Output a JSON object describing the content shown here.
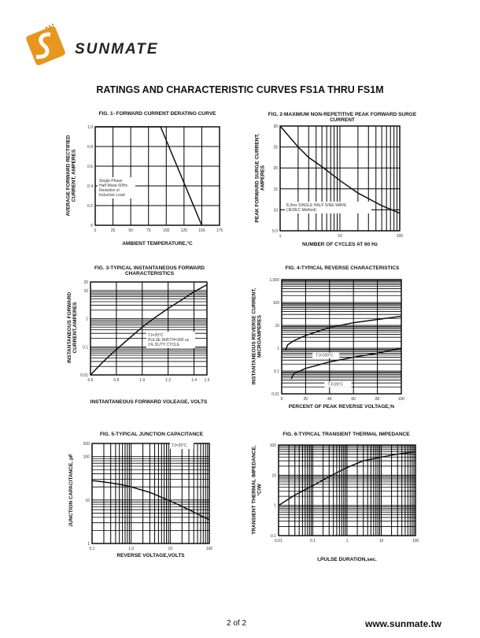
{
  "header": {
    "logo_text": "SUNMATE",
    "title": "RATINGS AND CHARACTERISTIC CURVES FS1A THRU FS1M"
  },
  "footer": {
    "page": "2 of 2",
    "url": "www.sunmate.tw"
  },
  "colors": {
    "logo_orange": "#e8961e",
    "logo_text": "#222222",
    "grid": "#000000"
  },
  "chart_data": [
    {
      "type": "line",
      "title": "FIG. 1- FORWARD CURRENT DERATING CURVE",
      "xlabel": "AMBIENT TEMPERATURE,°C",
      "ylabel": "AVERAGE FORWARD RECTIFIED CURRENT, AMPERES",
      "xlim": [
        0,
        175
      ],
      "ylim": [
        0,
        1.0
      ],
      "xscale": "linear",
      "yscale": "linear",
      "grid": true,
      "xticks": [
        "0",
        "25",
        "50",
        "75",
        "100",
        "125",
        "150",
        "175"
      ],
      "yticks": [
        "0",
        "0.2",
        "0.4",
        "0.6",
        "0.8",
        "1.0"
      ],
      "annotation": [
        "Single Phase",
        "Half Wave 60Hz",
        "Resistive or",
        "Inductive Load"
      ],
      "series": [
        {
          "x": [
            0,
            92,
            150
          ],
          "y": [
            1.0,
            1.0,
            0
          ]
        }
      ]
    },
    {
      "type": "line",
      "title": "FIG. 2-MAXIMUM NON-REPETITIVE PEAK FORWARD SURGE CURRENT",
      "xlabel": "NUMBER OF CYCLES AT 60 Hz",
      "ylabel": "PEAK FORWARD SURGE CURRENT, AMPERES",
      "xlim": [
        1,
        100
      ],
      "ylim": [
        5,
        30
      ],
      "xscale": "log",
      "yscale": "linear",
      "grid": true,
      "xticks": [
        "1",
        "10",
        "100"
      ],
      "yticks": [
        "5.0",
        "10",
        "15",
        "20",
        "25",
        "30"
      ],
      "annotation": [
        "8.3ms SINGLE HALF SINE-WAVE",
        "(JEDEC Method)"
      ],
      "series": [
        {
          "x": [
            1,
            2,
            3,
            5,
            10,
            20,
            50,
            100
          ],
          "y": [
            30,
            25,
            22.5,
            20.3,
            17,
            14,
            11,
            9.2
          ]
        }
      ]
    },
    {
      "type": "line",
      "title": "FIG. 3-TYPICAL INSTANTANEOUS FORWARD CHARACTERISTICS",
      "xlabel": "INSTANTANEOUS FORWARD VOLEAGE, VOLTS",
      "ylabel": "INSTANTANEOUS FORWARD CURRENT,AMPERES",
      "xlim": [
        0.6,
        1.5
      ],
      "ylim": [
        0.01,
        20
      ],
      "xscale": "linear",
      "yscale": "log",
      "grid": true,
      "xticks": [
        "0.6",
        "0.8",
        "1.0",
        "1.2",
        "1.4",
        "1.5"
      ],
      "yticks": [
        "0.01",
        "0.1",
        "1",
        "10",
        "20"
      ],
      "annotation": [
        "TJ=25°C",
        "PULSE WIDTH=300 us",
        "1% DUTY CYCLE"
      ],
      "series": [
        {
          "x": [
            0.6,
            0.7,
            0.8,
            0.9,
            1.0,
            1.1,
            1.2,
            1.3,
            1.4,
            1.5
          ],
          "y": [
            0.01,
            0.03,
            0.08,
            0.2,
            0.5,
            1.1,
            2.3,
            4.5,
            9,
            16
          ]
        }
      ]
    },
    {
      "type": "line",
      "title": "FIG. 4-TYPICAL REVERSE CHARACTERISTICS",
      "xlabel": "PERCENT OF PEAK REVERSE VOLTAGE,%",
      "ylabel": "INSTANTANEOUS REVERSE CURRENT, MICROAMPERES",
      "xlim": [
        0,
        100
      ],
      "ylim": [
        0.01,
        1000
      ],
      "xscale": "linear",
      "yscale": "log",
      "grid": true,
      "xticks": [
        "0",
        "20",
        "40",
        "60",
        "80",
        "100"
      ],
      "yticks": [
        "0.01",
        "0.1",
        "1",
        "10",
        "100",
        "1,000"
      ],
      "series": [
        {
          "name": "TJ=100°C",
          "x": [
            3,
            5,
            10,
            20,
            40,
            60,
            80,
            100
          ],
          "y": [
            0.8,
            1.4,
            2.1,
            3.6,
            8,
            13,
            18,
            25
          ]
        },
        {
          "name": "TJ=25°C",
          "x": [
            8,
            10,
            20,
            40,
            60,
            80,
            100
          ],
          "y": [
            0.045,
            0.075,
            0.13,
            0.25,
            0.4,
            0.6,
            1.0
          ]
        }
      ]
    },
    {
      "type": "line",
      "title": "FIG. 5-TYPICAL JUNCTION CAPACITANCE",
      "xlabel": "REVERSE VOLTAGE,VOLTS",
      "ylabel": "JUNCTION CAPACITANCE, pF",
      "xlim": [
        0.1,
        100
      ],
      "ylim": [
        1,
        200
      ],
      "xscale": "log",
      "yscale": "log",
      "grid": true,
      "xticks": [
        "0.1",
        "1.0",
        "10",
        "100"
      ],
      "yticks": [
        "1",
        "10",
        "100",
        "200"
      ],
      "annotation": [
        "TJ=25°C"
      ],
      "series": [
        {
          "x": [
            0.1,
            0.2,
            0.5,
            1,
            3,
            10,
            30,
            100
          ],
          "y": [
            28,
            26,
            23,
            20,
            15,
            9.5,
            6,
            3.5
          ]
        }
      ]
    },
    {
      "type": "line",
      "title": "FIG. 6-TYPICAL TRANSIENT THERMAL IMPEDANCE",
      "xlabel": "t,PULSE DURATION,sec.",
      "ylabel": "TRANSIENT THERMAL IMPEDANCE, °C/W",
      "xlim": [
        0.01,
        100
      ],
      "ylim": [
        0.1,
        100
      ],
      "xscale": "log",
      "yscale": "log",
      "grid": true,
      "xticks": [
        "0.01",
        "0.1",
        "1",
        "10",
        "100"
      ],
      "yticks": [
        "0.1",
        "1",
        "10",
        "100"
      ],
      "series": [
        {
          "x": [
            0.01,
            0.03,
            0.1,
            0.3,
            1,
            3,
            10,
            30,
            100
          ],
          "y": [
            1,
            2.2,
            4.5,
            9,
            18,
            30,
            40,
            50,
            60
          ]
        }
      ]
    }
  ]
}
